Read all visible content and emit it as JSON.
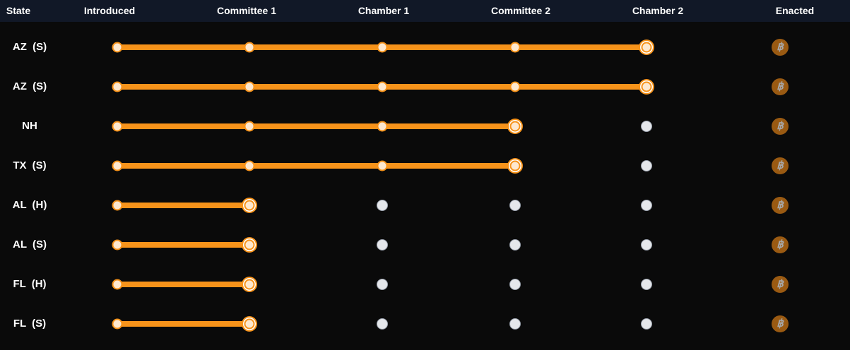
{
  "header": {
    "columns": [
      "State",
      "Introduced",
      "Committee 1",
      "Chamber 1",
      "Committee 2",
      "Chamber 2",
      "Enacted"
    ]
  },
  "colors": {
    "progress": "#f7931a",
    "node_fill": "#fde8cf",
    "pending": "#e5e7eb",
    "enacted_icon_bg": "#9a5a12"
  },
  "enacted_icon": "bitcoin-icon",
  "rows": [
    {
      "state": "AZ (S)",
      "stage": 4
    },
    {
      "state": "AZ (S)",
      "stage": 4
    },
    {
      "state": "NH",
      "stage": 3
    },
    {
      "state": "TX (S)",
      "stage": 3
    },
    {
      "state": "AL (H)",
      "stage": 1
    },
    {
      "state": "AL (S)",
      "stage": 1
    },
    {
      "state": "FL (H)",
      "stage": 1
    },
    {
      "state": "FL (S)",
      "stage": 1
    }
  ]
}
